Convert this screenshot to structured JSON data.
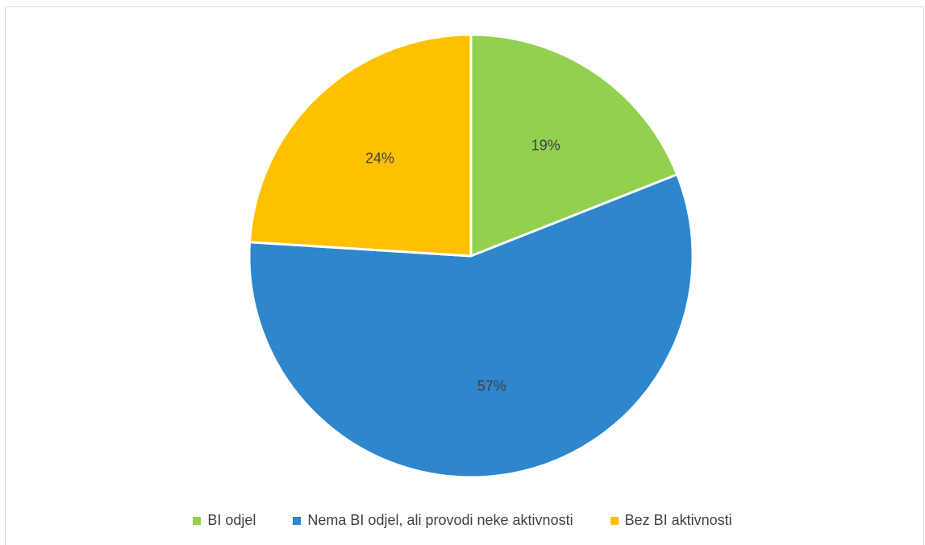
{
  "chart_data": {
    "type": "pie",
    "categories": [
      "BI odjel",
      "Nema BI odjel, ali provodi neke aktivnosti",
      "Bez BI aktivnosti"
    ],
    "values": [
      19,
      57,
      24
    ],
    "labels": [
      "19%",
      "57%",
      "24%"
    ],
    "colors": [
      "#92d050",
      "#2e86cc",
      "#ffc000"
    ],
    "start_angle_deg": 0,
    "direction": "clockwise",
    "legend_position": "bottom"
  }
}
